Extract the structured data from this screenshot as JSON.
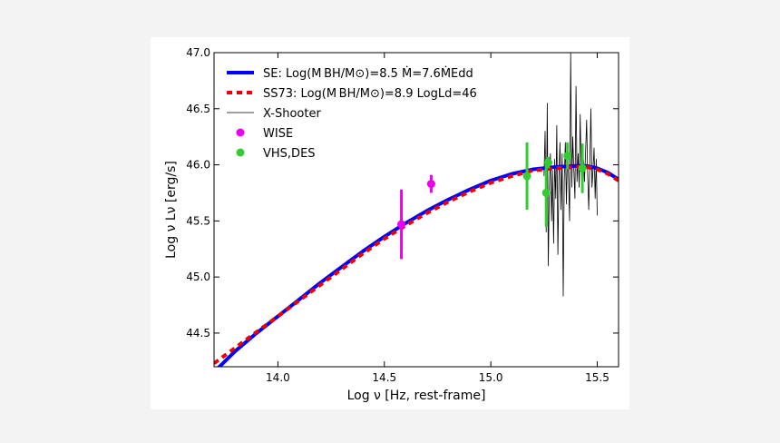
{
  "chart_data": {
    "type": "line",
    "xlabel": "Log ν [Hz, rest-frame]",
    "ylabel": "Log ν Lν [erg/s]",
    "xlim": [
      13.7,
      15.6
    ],
    "ylim": [
      44.2,
      47.0
    ],
    "xticks": [
      14.0,
      14.5,
      15.0,
      15.5
    ],
    "xtick_labels": [
      "14.0",
      "14.5",
      "15.0",
      "15.5"
    ],
    "yticks": [
      44.5,
      45.0,
      45.5,
      46.0,
      46.5,
      47.0
    ],
    "ytick_labels": [
      "44.5",
      "45.0",
      "45.5",
      "46.0",
      "46.5",
      "47.0"
    ],
    "legend_position": "top-left",
    "series": [
      {
        "name": "SE: Log(M_BH/M_sun)=8.5 Mdot=7.6Mdot_Edd",
        "legend_label": "SE: Log(M BH/M⊙)=8.5 Ṁ=7.6ṀEdd",
        "style": "solid",
        "color": "#0000ff",
        "x": [
          13.72,
          13.8,
          13.9,
          14.0,
          14.1,
          14.2,
          14.3,
          14.4,
          14.5,
          14.6,
          14.7,
          14.8,
          14.9,
          15.0,
          15.1,
          15.2,
          15.3,
          15.4,
          15.45,
          15.5,
          15.55,
          15.6
        ],
        "y": [
          44.19,
          44.34,
          44.5,
          44.65,
          44.8,
          44.95,
          45.09,
          45.23,
          45.36,
          45.48,
          45.59,
          45.69,
          45.78,
          45.86,
          45.92,
          45.96,
          45.98,
          45.99,
          45.99,
          45.97,
          45.93,
          45.87
        ]
      },
      {
        "name": "SS73: Log(M_BH/M_sun)=8.9 LogL_d=46",
        "legend_label": "SS73: Log(M BH/M⊙)=8.9 LogLd=46",
        "style": "dashed",
        "color": "#ee0000",
        "x": [
          13.7,
          13.8,
          13.9,
          14.0,
          14.1,
          14.2,
          14.3,
          14.4,
          14.5,
          14.6,
          14.7,
          14.8,
          14.9,
          15.0,
          15.1,
          15.2,
          15.3,
          15.4,
          15.45,
          15.5,
          15.55,
          15.6
        ],
        "y": [
          44.23,
          44.37,
          44.51,
          44.65,
          44.79,
          44.93,
          45.07,
          45.21,
          45.34,
          45.46,
          45.57,
          45.67,
          45.76,
          45.84,
          45.9,
          45.95,
          45.97,
          45.98,
          45.98,
          45.96,
          45.92,
          45.86
        ]
      },
      {
        "name": "X-Shooter",
        "legend_label": "X-Shooter",
        "style": "thin",
        "color": "#000000",
        "x": [
          15.25,
          15.255,
          15.26,
          15.265,
          15.27,
          15.275,
          15.28,
          15.285,
          15.29,
          15.295,
          15.3,
          15.305,
          15.31,
          15.315,
          15.32,
          15.325,
          15.33,
          15.335,
          15.34,
          15.345,
          15.35,
          15.355,
          15.36,
          15.365,
          15.37,
          15.375,
          15.38,
          15.385,
          15.39,
          15.395,
          15.4,
          15.405,
          15.41,
          15.415,
          15.42,
          15.425,
          15.43,
          15.435,
          15.44,
          15.445,
          15.45,
          15.455,
          15.46,
          15.465,
          15.47,
          15.475,
          15.48,
          15.485,
          15.49,
          15.495,
          15.5
        ],
        "y": [
          45.9,
          46.3,
          45.4,
          46.55,
          45.1,
          45.8,
          46.1,
          45.5,
          45.95,
          45.3,
          46.05,
          45.7,
          46.35,
          45.2,
          45.9,
          46.2,
          45.6,
          46.1,
          44.83,
          45.85,
          46.2,
          45.65,
          46.15,
          45.9,
          45.5,
          47.0,
          45.8,
          46.25,
          45.95,
          45.7,
          46.7,
          45.85,
          46.1,
          45.8,
          46.45,
          45.9,
          45.75,
          46.05,
          45.85,
          46.1,
          46.4,
          45.9,
          45.6,
          46.0,
          46.5,
          45.8,
          45.95,
          46.15,
          45.7,
          46.05,
          45.55
        ]
      }
    ],
    "error_series": [
      {
        "name": "WISE",
        "legend_label": "WISE",
        "color": "#ee00ee",
        "points": [
          {
            "x": 14.58,
            "y": 45.47,
            "yerr": 0.31
          },
          {
            "x": 14.72,
            "y": 45.83,
            "yerr": 0.08
          }
        ]
      },
      {
        "name": "VHS,DES",
        "legend_label": "VHS,DES",
        "color": "#33cc33",
        "points": [
          {
            "x": 15.17,
            "y": 45.9,
            "yerr": 0.3
          },
          {
            "x": 15.26,
            "y": 45.75,
            "yerr": 0.3
          },
          {
            "x": 15.27,
            "y": 46.02,
            "yerr": 0.05
          },
          {
            "x": 15.36,
            "y": 46.08,
            "yerr": 0.12
          },
          {
            "x": 15.43,
            "y": 45.97,
            "yerr": 0.22
          }
        ]
      }
    ]
  }
}
